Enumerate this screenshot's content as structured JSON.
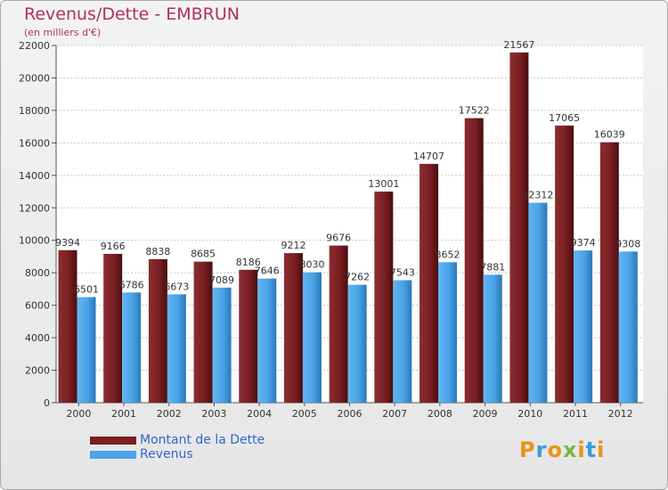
{
  "chart_data": {
    "type": "bar",
    "title": "Revenus/Dette - EMBRUN",
    "subtitle": "(en milliers d'€)",
    "categories": [
      "2000",
      "2001",
      "2002",
      "2003",
      "2004",
      "2005",
      "2006",
      "2007",
      "2008",
      "2009",
      "2010",
      "2011",
      "2012"
    ],
    "series": [
      {
        "name": "Montant de la Dette",
        "color": "#7a1f22",
        "values": [
          9394,
          9166,
          8838,
          8685,
          8186,
          9212,
          9676,
          13001,
          14707,
          17522,
          21567,
          17065,
          16039
        ],
        "labels": [
          "9394",
          "9166",
          "8838",
          "8685",
          "8186",
          "9212",
          "9676",
          "13001",
          "14707",
          "17522",
          "21567",
          "17065",
          "16039"
        ]
      },
      {
        "name": "Revenus",
        "color": "#4aa3e8",
        "values": [
          6501,
          6786,
          6673,
          7089,
          7646,
          8030,
          7262,
          7543,
          8652,
          7881,
          12312,
          9374,
          9308
        ],
        "labels": [
          "6501",
          "6786",
          "6673",
          "7089",
          "7646",
          "8030",
          "7262",
          "7543",
          "8652",
          "7881",
          "12312",
          "9374",
          "9308"
        ]
      }
    ],
    "ylim": [
      0,
      22000
    ],
    "yticks": [
      "0",
      "2000",
      "4000",
      "6000",
      "8000",
      "10000",
      "12000",
      "14000",
      "16000",
      "18000",
      "20000",
      "22000"
    ],
    "grid": true,
    "legend_position": "bottom-left"
  },
  "branding": {
    "logo_text": "Proxiti",
    "logo_colors": [
      "#e8941a",
      "#3a9ad9",
      "#e8941a",
      "#7ab648",
      "#e8941a",
      "#3a9ad9",
      "#e8941a"
    ]
  }
}
